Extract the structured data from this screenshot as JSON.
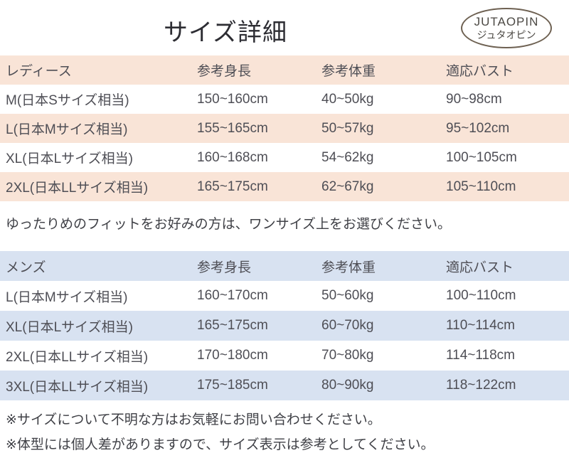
{
  "header": {
    "title": "サイズ詳細",
    "logo": {
      "brand": "JUTAOPIN",
      "brand_kana": "ジュタオピン"
    }
  },
  "colors": {
    "ladies_stripe": "#f9e4d7",
    "mens_stripe": "#d8e2f1",
    "logo_border": "#6e6152",
    "body_text": "#4e4e55"
  },
  "ladies_table": {
    "headers": [
      "レディース",
      "参考身長",
      "参考体重",
      "適応バスト"
    ],
    "rows": [
      [
        "M(日本Sサイズ相当)",
        "150~160cm",
        "40~50kg",
        "90~98cm"
      ],
      [
        "L(日本Mサイズ相当)",
        "155~165cm",
        "50~57kg",
        "95~102cm"
      ],
      [
        "XL(日本Lサイズ相当)",
        "160~168cm",
        "54~62kg",
        "100~105cm"
      ],
      [
        "2XL(日本LLサイズ相当)",
        "165~175cm",
        "62~67kg",
        "105~110cm"
      ]
    ]
  },
  "fit_note": "ゆったりめのフィットをお好みの方は、ワンサイズ上をお選びください。",
  "mens_table": {
    "headers": [
      "メンズ",
      "参考身長",
      "参考体重",
      "適応バスト"
    ],
    "rows": [
      [
        "L(日本Mサイズ相当)",
        "160~170cm",
        "50~60kg",
        "100~110cm"
      ],
      [
        "XL(日本Lサイズ相当)",
        "165~175cm",
        "60~70kg",
        "110~114cm"
      ],
      [
        "2XL(日本LLサイズ相当)",
        "170~180cm",
        "70~80kg",
        "114~118cm"
      ],
      [
        "3XL(日本LLサイズ相当)",
        "175~185cm",
        "80~90kg",
        "118~122cm"
      ]
    ]
  },
  "footnotes": [
    "※サイズについて不明な方はお気軽にお問い合わせください。",
    "※体型には個人差がありますので、サイズ表示は参考としてください。"
  ]
}
